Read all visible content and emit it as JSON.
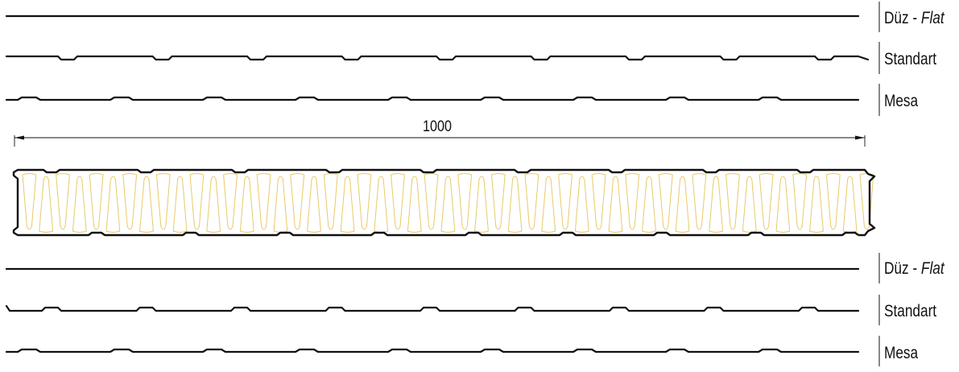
{
  "profiles": {
    "top": [
      {
        "id": "flat",
        "name": "Düz - ",
        "name_italic": "Flat"
      },
      {
        "id": "standart",
        "name": "Standart",
        "name_italic": ""
      },
      {
        "id": "mesa",
        "name": "Mesa",
        "name_italic": ""
      }
    ],
    "bottom": [
      {
        "id": "flat",
        "name": "Düz - ",
        "name_italic": "Flat"
      },
      {
        "id": "standart",
        "name": "Standart",
        "name_italic": ""
      },
      {
        "id": "mesa",
        "name": "Mesa",
        "name_italic": ""
      }
    ]
  },
  "dimension": {
    "value": "1000"
  },
  "colors": {
    "line": "#111111",
    "core": "#e8c968"
  }
}
